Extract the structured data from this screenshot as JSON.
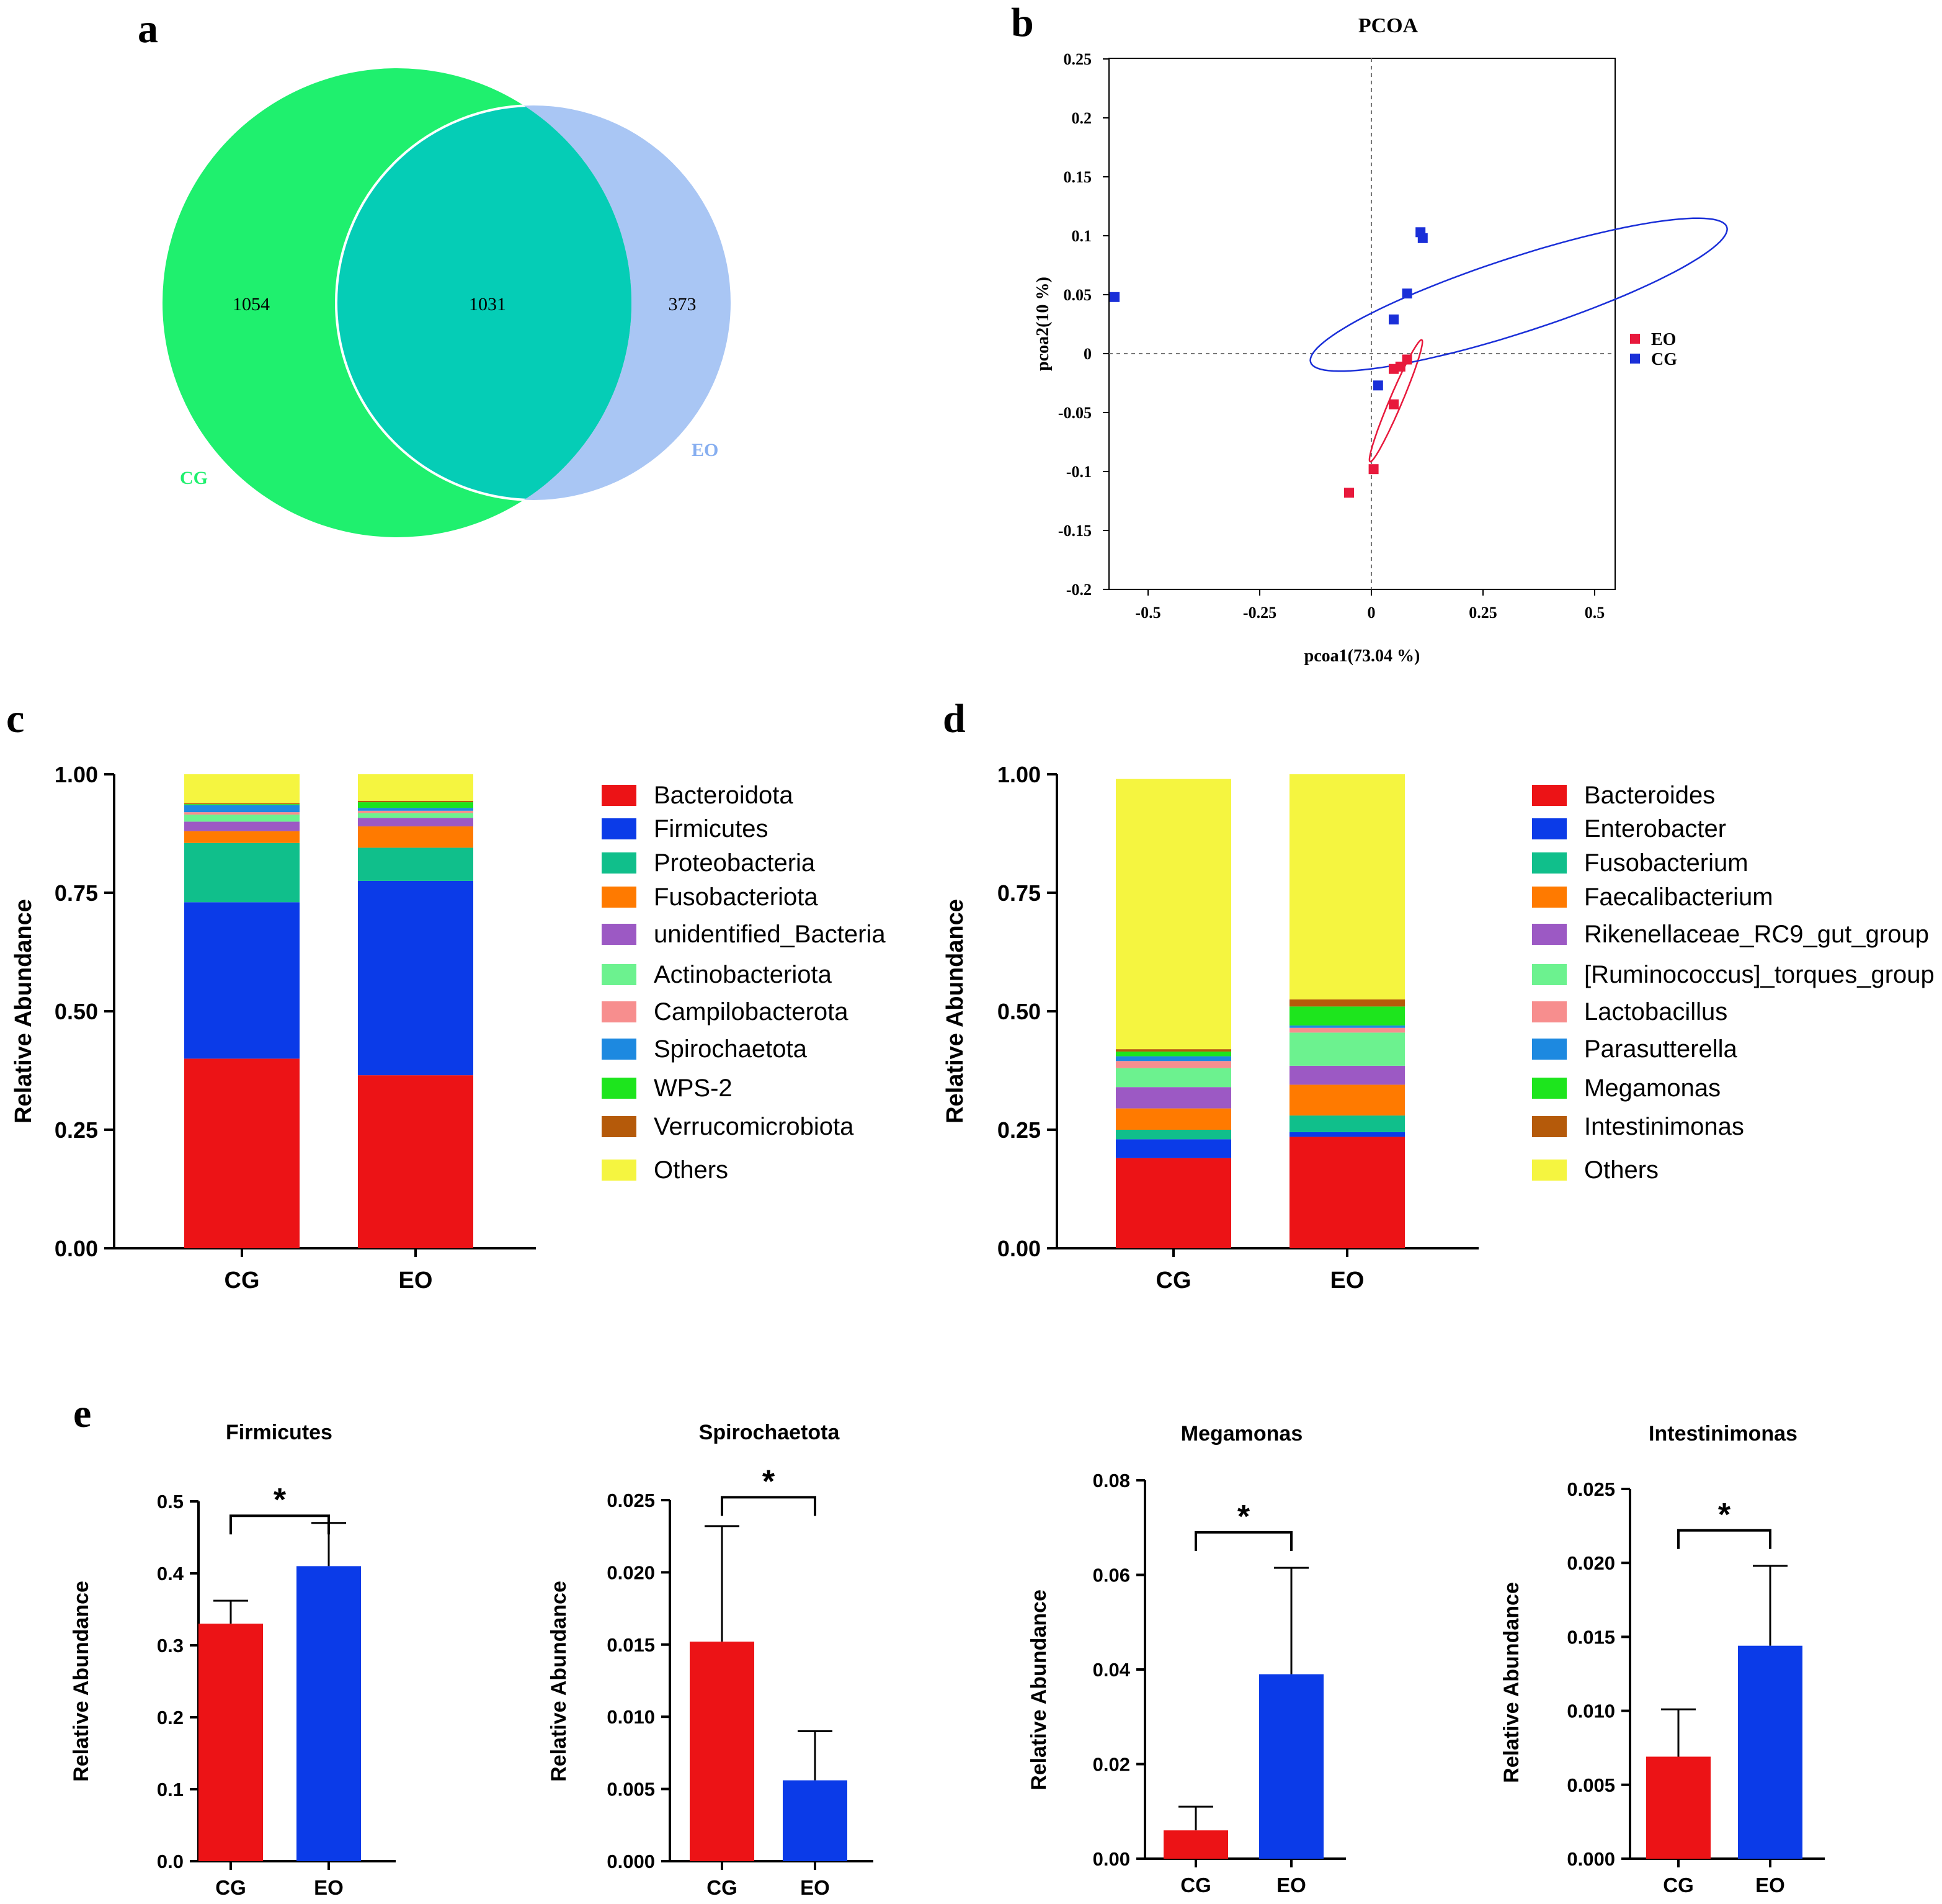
{
  "chart_data": [
    {
      "panel": "a",
      "type": "venn",
      "sets": [
        {
          "name": "CG",
          "color": "#1ff06e"
        },
        {
          "name": "EO",
          "color": "#a9c6f4"
        }
      ],
      "regions": {
        "only_CG": "1054",
        "both": "1031",
        "only_EO": "373"
      },
      "intersection_color": "#05cdb6"
    },
    {
      "panel": "b",
      "type": "scatter",
      "title": "PCOA",
      "xlabel": "pcoa1(73.04 %)",
      "ylabel": "pcoa2(10 %)",
      "xlim": [
        -0.55,
        0.55
      ],
      "ylim": [
        -0.2,
        0.25
      ],
      "xticks": [
        -0.5,
        -0.25,
        0,
        0.25,
        0.5
      ],
      "xtick_labels": [
        "-0.5",
        "-0.25",
        "0",
        "0.25",
        "0.5"
      ],
      "yticks": [
        -0.2,
        -0.15,
        -0.1,
        -0.05,
        0,
        0.05,
        0.1,
        0.15,
        0.2,
        0.25
      ],
      "ytick_labels": [
        "-0.2",
        "-0.15",
        "-0.1",
        "-0.05",
        "0",
        "0.05",
        "0.1",
        "0.15",
        "0.2",
        "0.25"
      ],
      "legend_position": "right",
      "series": [
        {
          "name": "EO",
          "color": "#e8193c",
          "points": [
            [
              0.05,
              -0.013
            ],
            [
              0.065,
              -0.011
            ],
            [
              0.08,
              -0.005
            ],
            [
              0.05,
              -0.043
            ],
            [
              0.005,
              -0.098
            ],
            [
              -0.05,
              -0.118
            ]
          ],
          "ellipse": {
            "cx": 0.055,
            "cy": -0.04,
            "rx": 0.148,
            "ry": 0.014,
            "angle_deg": 67
          }
        },
        {
          "name": "CG",
          "color": "#1a2fd8",
          "points": [
            [
              -0.575,
              0.048
            ],
            [
              0.11,
              0.103
            ],
            [
              0.115,
              0.098
            ],
            [
              0.08,
              0.051
            ],
            [
              0.05,
              0.029
            ],
            [
              0.015,
              -0.027
            ]
          ],
          "ellipse": {
            "cx": 0.33,
            "cy": 0.05,
            "rx": 0.49,
            "ry": 0.084,
            "angle_deg": 18
          }
        }
      ]
    },
    {
      "panel": "c",
      "type": "stacked_bar",
      "ylabel": "Relative Abundance",
      "ylim": [
        0,
        1
      ],
      "yticks": [
        0,
        0.25,
        0.5,
        0.75,
        1
      ],
      "ytick_labels": [
        "0.00",
        "0.25",
        "0.50",
        "0.75",
        "1.00"
      ],
      "categories": [
        "CG",
        "EO"
      ],
      "series": [
        {
          "name": "Bacteroidota",
          "color": "#ec1316",
          "values": [
            0.4,
            0.365
          ]
        },
        {
          "name": "Firmicutes",
          "color": "#0b3be8",
          "values": [
            0.33,
            0.41
          ]
        },
        {
          "name": "Proteobacteria",
          "color": "#10bf8b",
          "values": [
            0.125,
            0.07
          ]
        },
        {
          "name": "Fusobacteriota",
          "color": "#ff7a00",
          "values": [
            0.025,
            0.045
          ]
        },
        {
          "name": "unidentified_Bacteria",
          "color": "#9c59c4",
          "values": [
            0.02,
            0.018
          ]
        },
        {
          "name": "Actinobacteriota",
          "color": "#6cf28f",
          "values": [
            0.015,
            0.01
          ]
        },
        {
          "name": "Campilobacterota",
          "color": "#f78e8e",
          "values": [
            0.005,
            0.005
          ]
        },
        {
          "name": "Spirochaetota",
          "color": "#1d89e0",
          "values": [
            0.015,
            0.006
          ]
        },
        {
          "name": "WPS-2",
          "color": "#1de51d",
          "values": [
            0.002,
            0.012
          ]
        },
        {
          "name": "Verrucomicrobiota",
          "color": "#b55a0a",
          "values": [
            0.002,
            0.003
          ]
        },
        {
          "name": "Others",
          "color": "#f5f540",
          "values": [
            0.061,
            0.056
          ]
        }
      ]
    },
    {
      "panel": "d",
      "type": "stacked_bar",
      "ylabel": "Relative Abundance",
      "ylim": [
        0,
        1
      ],
      "yticks": [
        0,
        0.25,
        0.5,
        0.75,
        1
      ],
      "ytick_labels": [
        "0.00",
        "0.25",
        "0.50",
        "0.75",
        "1.00"
      ],
      "categories": [
        "CG",
        "EO"
      ],
      "series": [
        {
          "name": "Bacteroides",
          "color": "#ec1316",
          "values": [
            0.19,
            0.235
          ]
        },
        {
          "name": "Enterobacter",
          "color": "#0b3be8",
          "values": [
            0.04,
            0.01
          ]
        },
        {
          "name": "Fusobacterium",
          "color": "#10bf8b",
          "values": [
            0.02,
            0.035
          ]
        },
        {
          "name": "Faecalibacterium",
          "color": "#ff7a00",
          "values": [
            0.045,
            0.065
          ]
        },
        {
          "name": "Rikenellaceae_RC9_gut_group",
          "color": "#9c59c4",
          "values": [
            0.045,
            0.04
          ]
        },
        {
          "name": "[Ruminococcus]_torques_group",
          "color": "#6cf28f",
          "values": [
            0.04,
            0.07
          ]
        },
        {
          "name": "Lactobacillus",
          "color": "#f78e8e",
          "values": [
            0.015,
            0.01
          ]
        },
        {
          "name": "Parasutterella",
          "color": "#1d89e0",
          "values": [
            0.01,
            0.005
          ]
        },
        {
          "name": "Megamonas",
          "color": "#1de51d",
          "values": [
            0.01,
            0.04
          ]
        },
        {
          "name": "Intestinimonas",
          "color": "#b55a0a",
          "values": [
            0.005,
            0.015
          ]
        },
        {
          "name": "Others",
          "color": "#f5f540",
          "values": [
            0.57,
            0.475
          ]
        }
      ]
    },
    {
      "panel": "e",
      "type": "bar",
      "title": "Firmicutes",
      "ylabel": "Relative Abundance",
      "ylim": [
        0,
        0.5
      ],
      "yticks": [
        0,
        0.1,
        0.2,
        0.3,
        0.4,
        0.5
      ],
      "ytick_labels": [
        "0.0",
        "0.1",
        "0.2",
        "0.3",
        "0.4",
        "0.5"
      ],
      "categories": [
        "CG",
        "EO"
      ],
      "values": [
        0.33,
        0.41
      ],
      "errors": [
        0.032,
        0.06
      ],
      "colors": [
        "#ec1316",
        "#0b3be8"
      ],
      "significance": "*",
      "bracket_y": 0.48
    },
    {
      "panel": "e",
      "type": "bar",
      "title": "Spirochaetota",
      "ylabel": "Relative Abundance",
      "ylim": [
        0,
        0.025
      ],
      "yticks": [
        0,
        0.005,
        0.01,
        0.015,
        0.02,
        0.025
      ],
      "ytick_labels": [
        "0.000",
        "0.005",
        "0.010",
        "0.015",
        "0.020",
        "0.025"
      ],
      "categories": [
        "CG",
        "EO"
      ],
      "values": [
        0.0152,
        0.0056
      ],
      "errors": [
        0.008,
        0.0034
      ],
      "colors": [
        "#ec1316",
        "#0b3be8"
      ],
      "significance": "*",
      "bracket_y": 0.0252
    },
    {
      "panel": "e",
      "type": "bar",
      "title": "Megamonas",
      "ylabel": "Relative Abundance",
      "ylim": [
        0,
        0.08
      ],
      "yticks": [
        0,
        0.02,
        0.04,
        0.06,
        0.08
      ],
      "ytick_labels": [
        "0.00",
        "0.02",
        "0.04",
        "0.06",
        "0.08"
      ],
      "categories": [
        "CG",
        "EO"
      ],
      "values": [
        0.006,
        0.039
      ],
      "errors": [
        0.005,
        0.0225
      ],
      "colors": [
        "#ec1316",
        "#0b3be8"
      ],
      "significance": "*",
      "bracket_y": 0.069
    },
    {
      "panel": "e",
      "type": "bar",
      "title": "Intestinimonas",
      "ylabel": "Relative Abundance",
      "ylim": [
        0,
        0.025
      ],
      "yticks": [
        0,
        0.005,
        0.01,
        0.015,
        0.02,
        0.025
      ],
      "ytick_labels": [
        "0.000",
        "0.005",
        "0.010",
        "0.015",
        "0.020",
        "0.025"
      ],
      "categories": [
        "CG",
        "EO"
      ],
      "values": [
        0.0069,
        0.0144
      ],
      "errors": [
        0.0032,
        0.0054
      ],
      "colors": [
        "#ec1316",
        "#0b3be8"
      ],
      "significance": "*",
      "bracket_y": 0.0222
    }
  ],
  "panel_labels": [
    "a",
    "b",
    "c",
    "d",
    "e"
  ]
}
